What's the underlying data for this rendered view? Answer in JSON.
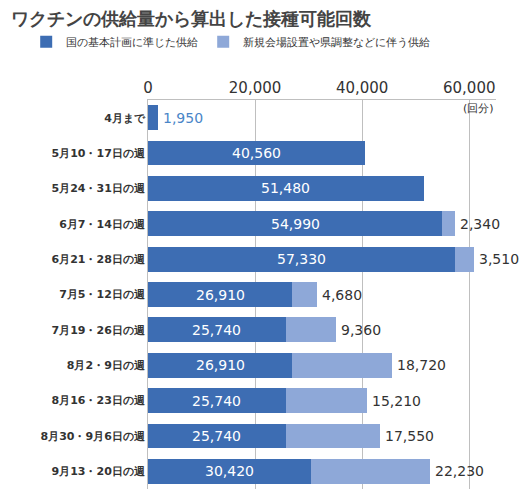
{
  "chart_data": {
    "type": "bar",
    "title": "ワクチンの供給量から算出した接種可能回数",
    "orientation": "horizontal",
    "stacked": true,
    "data_labels": true,
    "legend": "top left",
    "grid": true,
    "xlabel": "(回分)",
    "categories": [
      "4月まで",
      "5月10・17日の週",
      "5月24・31日の週",
      "6月7・14日の週",
      "6月21・28日の週",
      "7月5・12日の週",
      "7月19・26日の週",
      "8月2・9日の週",
      "8月16・23日の週",
      "8月30・9月6日の週",
      "9月13・20日の週"
    ],
    "series": [
      {
        "name": "国の基本計画に準じた供給",
        "color": "#3d6db3",
        "values": [
          1950,
          40560,
          51480,
          54990,
          57330,
          26910,
          25740,
          26910,
          25740,
          25740,
          30420
        ],
        "value_labels": [
          "1,950",
          "40,560",
          "51,480",
          "54,990",
          "57,330",
          "26,910",
          "25,740",
          "26,910",
          "25,740",
          "25,740",
          "30,420"
        ]
      },
      {
        "name": "新規会場設置や県調整などに伴う供給",
        "color": "#8ea8d8",
        "values": [
          null,
          null,
          null,
          2340,
          3510,
          4680,
          9360,
          18720,
          15210,
          17550,
          22230
        ],
        "value_labels": [
          null,
          null,
          null,
          "2,340",
          "3,510",
          "4,680",
          "9,360",
          "18,720",
          "15,210",
          "17,550",
          "22,230"
        ]
      }
    ],
    "xlim": [
      0,
      65000
    ],
    "xticks": [
      0,
      {
        "value": 20000,
        "label": "20,000"
      },
      {
        "value": 40000,
        "label": "40,000"
      },
      {
        "value": 60000,
        "label": "60,000"
      }
    ]
  }
}
